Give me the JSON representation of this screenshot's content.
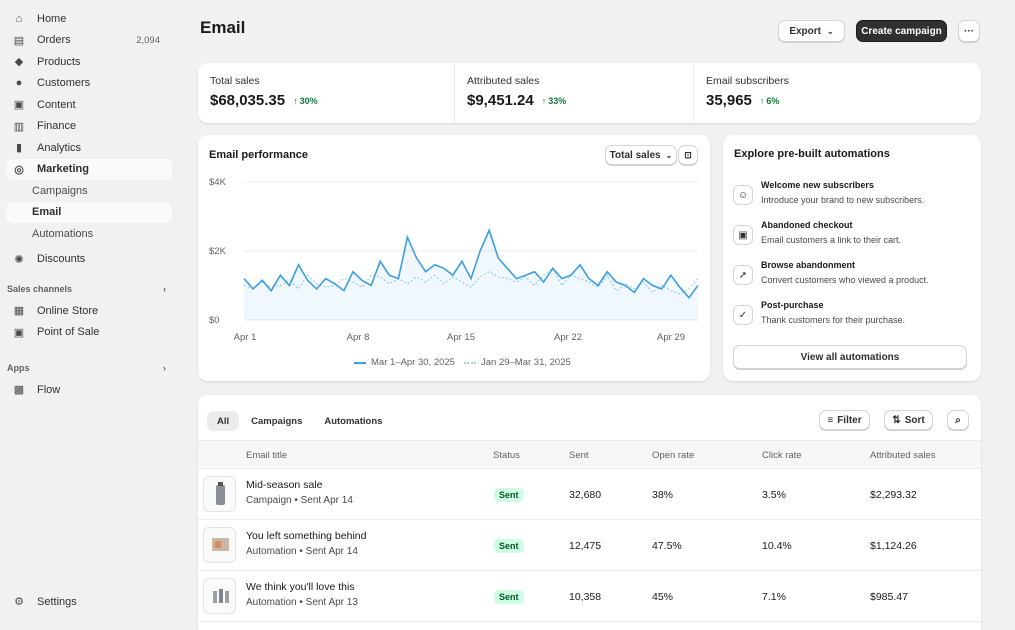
{
  "sidebar": {
    "items": [
      {
        "label": "Home",
        "icon": "home-icon",
        "glyph": "⌂"
      },
      {
        "label": "Orders",
        "icon": "orders-icon",
        "glyph": "▤",
        "count": "2,094"
      },
      {
        "label": "Products",
        "icon": "tag-icon",
        "glyph": "◆"
      },
      {
        "label": "Customers",
        "icon": "person-icon",
        "glyph": "●"
      },
      {
        "label": "Content",
        "icon": "content-icon",
        "glyph": "▣"
      },
      {
        "label": "Finance",
        "icon": "bank-icon",
        "glyph": "▥"
      },
      {
        "label": "Analytics",
        "icon": "bar-chart-icon",
        "glyph": "▮"
      },
      {
        "label": "Marketing",
        "icon": "target-icon",
        "glyph": "◎"
      }
    ],
    "marketing_sub": [
      "Campaigns",
      "Email",
      "Automations"
    ],
    "discounts": {
      "label": "Discounts",
      "icon": "discount-icon",
      "glyph": "✺"
    },
    "sales_channels_label": "Sales channels",
    "channels": [
      {
        "label": "Online Store",
        "icon": "store-icon",
        "glyph": "▦"
      },
      {
        "label": "Point of Sale",
        "icon": "pos-icon",
        "glyph": "▣"
      }
    ],
    "apps_label": "Apps",
    "apps": [
      {
        "label": "Flow",
        "icon": "flow-icon",
        "glyph": "▩"
      }
    ],
    "settings": {
      "label": "Settings",
      "icon": "gear-icon",
      "glyph": "⚙"
    }
  },
  "header": {
    "title": "Email",
    "export_label": "Export",
    "create_label": "Create campaign",
    "more_glyph": "···"
  },
  "metrics": [
    {
      "label": "Total sales",
      "value": "$68,035.35",
      "change": "30%"
    },
    {
      "label": "Attributed sales",
      "value": "$9,451.24",
      "change": "33%"
    },
    {
      "label": "Email subscribers",
      "value": "35,965",
      "change": "6%"
    }
  ],
  "performance": {
    "title": "Email performance",
    "selector_label": "Total sales"
  },
  "chart_data": {
    "type": "line",
    "x_tick_labels": [
      "Apr 1",
      "Apr 8",
      "Apr 15",
      "Apr 22",
      "Apr 29"
    ],
    "y_tick_labels": [
      "$4K",
      "$2K",
      "$0"
    ],
    "ylim": [
      0,
      4000
    ],
    "series": [
      {
        "name": "Mar 1–Apr 30, 2025",
        "style": "solid",
        "color": "#3b9fe0",
        "values": [
          1200,
          900,
          1150,
          850,
          1300,
          1000,
          1600,
          1150,
          900,
          1200,
          1050,
          850,
          1400,
          1150,
          1000,
          1700,
          1300,
          1200,
          2400,
          1800,
          1400,
          1600,
          1500,
          1300,
          1700,
          1200,
          2000,
          2600,
          1800,
          1500,
          1200,
          1300,
          1400,
          1100,
          1500,
          1200,
          1300,
          1600,
          1200,
          1000,
          1400,
          1100,
          1000,
          800,
          1200,
          1000,
          900,
          1300,
          950,
          650,
          1000
        ]
      },
      {
        "name": "Jan 29–Mar 31, 2025",
        "style": "dotted",
        "color": "#9fd6e8",
        "values": [
          1000,
          900,
          1100,
          950,
          1000,
          1150,
          900,
          1300,
          1050,
          950,
          1000,
          1200,
          1100,
          950,
          1300,
          1250,
          1050,
          1200,
          1050,
          1250,
          1100,
          1300,
          1050,
          1250,
          1100,
          950,
          1250,
          1400,
          1250,
          1200,
          1100,
          1250,
          1000,
          1300,
          1500,
          1000,
          1300,
          1200,
          1100,
          950,
          1300,
          850,
          1050,
          900,
          1100,
          800,
          1000,
          850,
          750,
          900,
          1200
        ]
      }
    ]
  },
  "automations": {
    "title": "Explore pre-built automations",
    "items": [
      {
        "title": "Welcome new subscribers",
        "desc": "Introduce your brand to new subscribers.",
        "icon": "person-add-icon",
        "glyph": "☺"
      },
      {
        "title": "Abandoned checkout",
        "desc": "Email customers a link to their cart.",
        "icon": "cart-icon",
        "glyph": "▣"
      },
      {
        "title": "Browse abandonment",
        "desc": "Convert customers who viewed a product.",
        "icon": "cursor-icon",
        "glyph": "➚"
      },
      {
        "title": "Post-purchase",
        "desc": "Thank customers for their purchase.",
        "icon": "receipt-icon",
        "glyph": "✓"
      }
    ],
    "view_all_label": "View all automations"
  },
  "table": {
    "tabs": [
      "All",
      "Campaigns",
      "Automations"
    ],
    "filter_label": "Filter",
    "sort_label": "Sort",
    "columns": [
      "Email title",
      "Status",
      "Sent",
      "Open rate",
      "Click rate",
      "Attributed sales"
    ],
    "rows": [
      {
        "title": "Mid-season sale",
        "sub": "Campaign  •  Sent Apr 14",
        "status": "Sent",
        "sent": "32,680",
        "open": "38%",
        "click": "3.5%",
        "sales": "$2,293.32"
      },
      {
        "title": "You left something behind",
        "sub": "Automation  •  Sent Apr 14",
        "status": "Sent",
        "sent": "12,475",
        "open": "47.5%",
        "click": "10.4%",
        "sales": "$1,124.26"
      },
      {
        "title": "We think you'll love this",
        "sub": "Automation  •  Sent Apr 13",
        "status": "Sent",
        "sent": "10,358",
        "open": "45%",
        "click": "7.1%",
        "sales": "$985.47"
      }
    ]
  }
}
